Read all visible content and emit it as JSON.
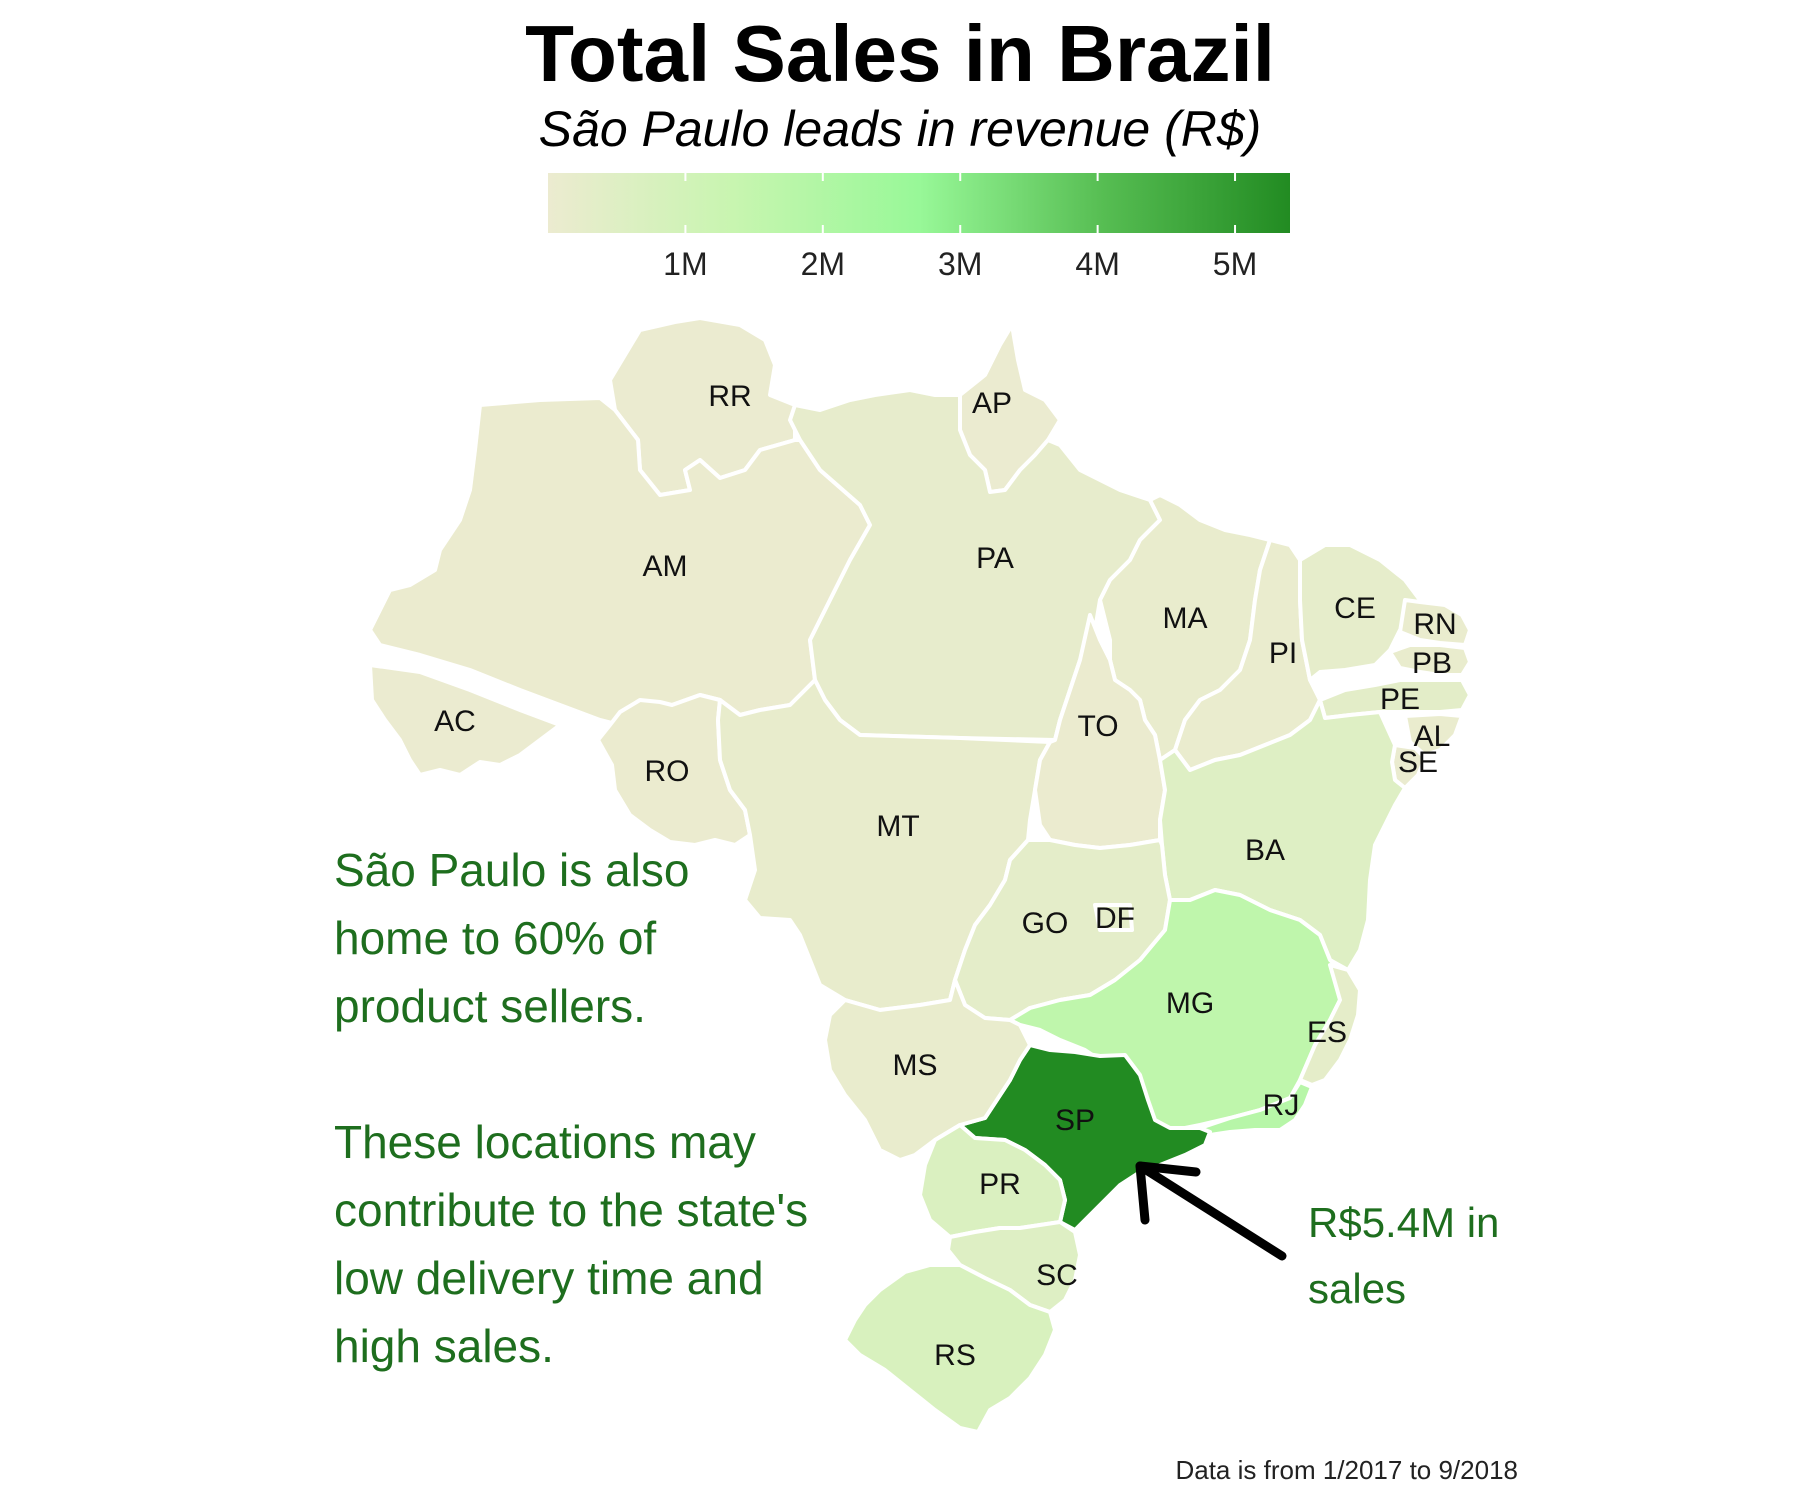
{
  "title": "Total Sales in Brazil",
  "subtitle": "São Paulo leads in revenue (R$)",
  "legend": {
    "ticks": [
      "1M",
      "2M",
      "3M",
      "4M",
      "5M"
    ],
    "tick_values": [
      1,
      2,
      3,
      4,
      5
    ],
    "range": [
      0,
      5.4
    ],
    "colors": [
      "#ecebd0",
      "#c8f5b0",
      "#98f898",
      "#56bd52",
      "#228b22"
    ]
  },
  "annotation": {
    "lines": [
      "São Paulo is also",
      "home to 60% of",
      "product sellers.",
      "",
      "These locations may",
      "contribute to the state's",
      "low delivery time and",
      "high sales."
    ]
  },
  "callout": {
    "lines": [
      "R$5.4M in",
      "sales"
    ]
  },
  "caption": "Data is from 1/2017 to 9/2018",
  "chart_data": {
    "type": "choropleth",
    "title": "Total Sales in Brazil",
    "subtitle": "São Paulo leads in revenue (R$)",
    "unit": "R$ (millions)",
    "states": [
      {
        "code": "RR",
        "value": 0.02
      },
      {
        "code": "AP",
        "value": 0.02
      },
      {
        "code": "AM",
        "value": 0.03
      },
      {
        "code": "PA",
        "value": 0.18
      },
      {
        "code": "AC",
        "value": 0.02
      },
      {
        "code": "RO",
        "value": 0.05
      },
      {
        "code": "MT",
        "value": 0.16
      },
      {
        "code": "MA",
        "value": 0.12
      },
      {
        "code": "PI",
        "value": 0.09
      },
      {
        "code": "CE",
        "value": 0.23
      },
      {
        "code": "RN",
        "value": 0.08
      },
      {
        "code": "PB",
        "value": 0.12
      },
      {
        "code": "PE",
        "value": 0.32
      },
      {
        "code": "AL",
        "value": 0.08
      },
      {
        "code": "SE",
        "value": 0.06
      },
      {
        "code": "TO",
        "value": 0.05
      },
      {
        "code": "BA",
        "value": 0.51
      },
      {
        "code": "GO",
        "value": 0.29
      },
      {
        "code": "DF",
        "value": 0.3
      },
      {
        "code": "MG",
        "value": 1.59
      },
      {
        "code": "ES",
        "value": 0.28
      },
      {
        "code": "RJ",
        "value": 1.82
      },
      {
        "code": "SP",
        "value": 5.4
      },
      {
        "code": "MS",
        "value": 0.12
      },
      {
        "code": "PR",
        "value": 0.68
      },
      {
        "code": "SC",
        "value": 0.52
      },
      {
        "code": "RS",
        "value": 0.75
      }
    ],
    "color_scale": {
      "min": 0,
      "max": 5.4,
      "ticks": [
        "1M",
        "2M",
        "3M",
        "4M",
        "5M"
      ]
    }
  }
}
